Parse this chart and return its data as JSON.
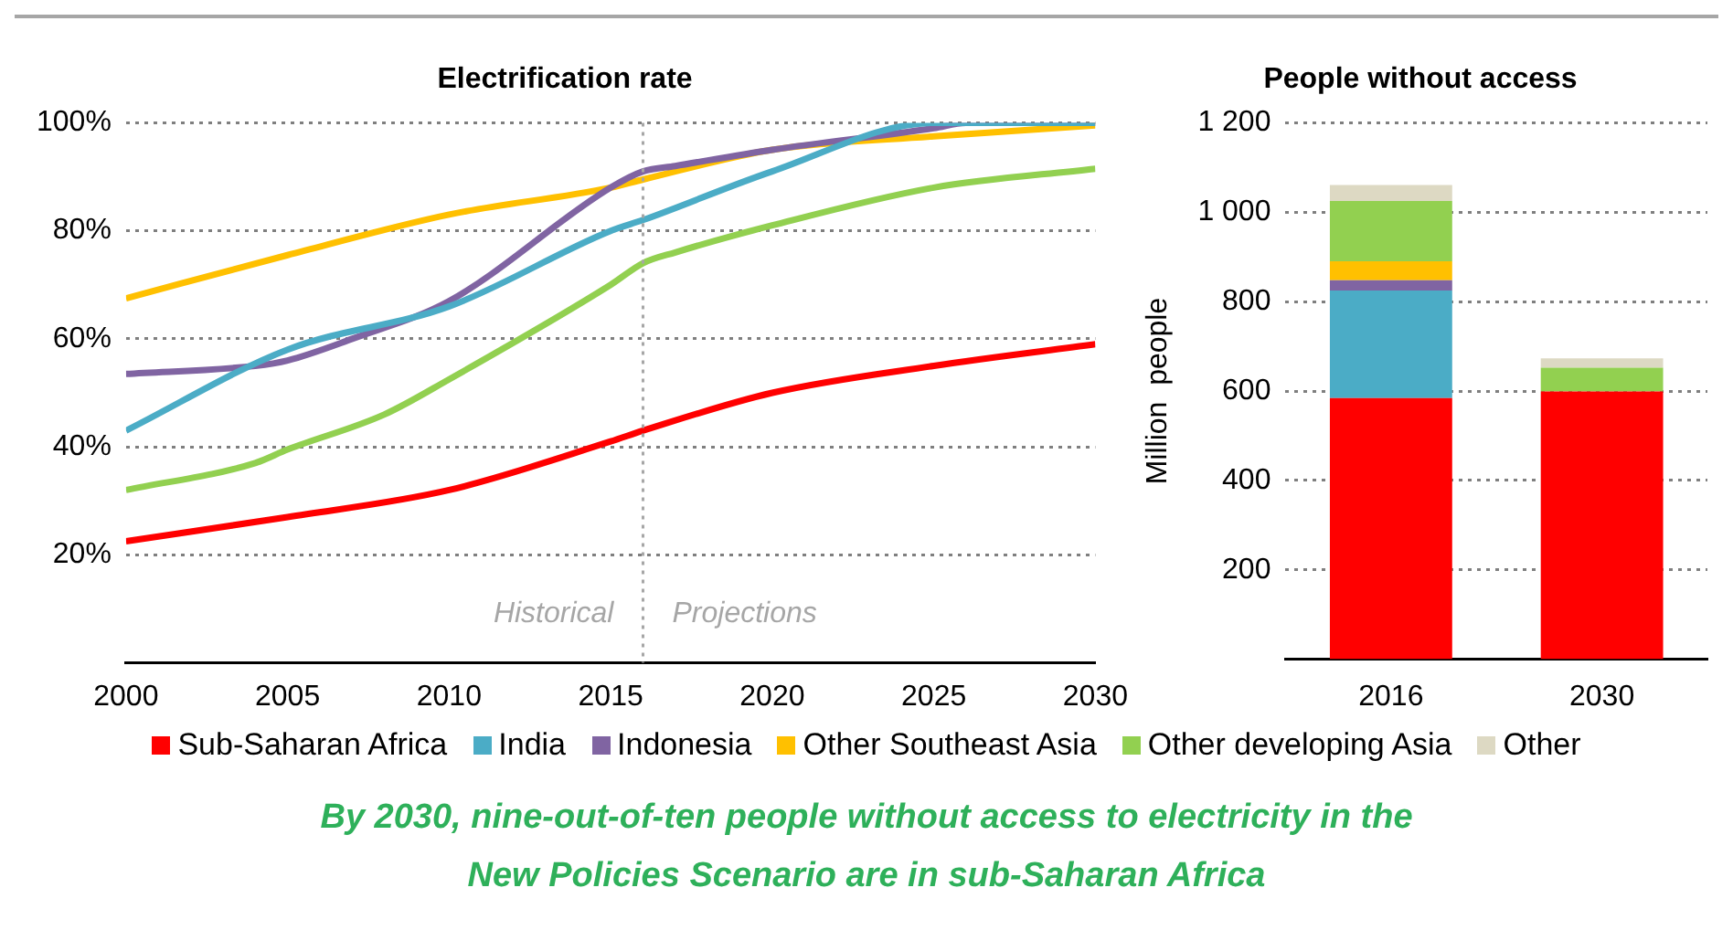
{
  "chart_data": [
    {
      "type": "line",
      "title": "Electrification rate",
      "x": [
        2000,
        2005,
        2010,
        2015,
        2016,
        2020,
        2025,
        2030
      ],
      "series": [
        {
          "name": "Sub-Saharan Africa",
          "color": "#ff0000",
          "values": [
            22.5,
            27,
            32,
            41,
            43,
            50,
            55,
            59
          ]
        },
        {
          "name": "India",
          "color": "#4bacc6",
          "values": [
            43,
            58,
            66,
            80,
            82,
            91,
            100,
            100
          ]
        },
        {
          "name": "Indonesia",
          "color": "#8064a2",
          "x": [
            2000,
            2004,
            2005,
            2007,
            2010,
            2015,
            2016,
            2017,
            2020,
            2025,
            2026,
            2030
          ],
          "values": [
            53.5,
            55,
            56,
            60,
            67,
            88,
            91,
            92,
            95,
            99,
            100,
            100
          ]
        },
        {
          "name": "Other Southeast Asia",
          "color": "#ffc000",
          "values": [
            67.5,
            75.5,
            83,
            88,
            89.5,
            95,
            97.5,
            99.5
          ]
        },
        {
          "name": "Other developing Asia",
          "color": "#92d050",
          "x": [
            2000,
            2004,
            2005,
            2008,
            2010,
            2015,
            2016,
            2017,
            2020,
            2025,
            2030
          ],
          "values": [
            32,
            37,
            39.5,
            46,
            52.5,
            70,
            74,
            76,
            81,
            88,
            91.5
          ]
        }
      ],
      "xlim": [
        2000,
        2030
      ],
      "xticks": [
        2000,
        2005,
        2010,
        2015,
        2020,
        2025,
        2030
      ],
      "ylim": [
        0,
        100
      ],
      "yticks": [
        {
          "value": 20,
          "label": "20%"
        },
        {
          "value": 40,
          "label": "40%"
        },
        {
          "value": 60,
          "label": "60%"
        },
        {
          "value": 80,
          "label": "80%"
        },
        {
          "value": 100,
          "label": "100%"
        }
      ],
      "grid": "y",
      "legend": "bottom",
      "marker": "none",
      "line_style": "solid",
      "ref_lines": [
        {
          "axis": "x",
          "value": 2016,
          "color": "#a6a6a6",
          "line_style": "dotted"
        }
      ],
      "annotations": [
        "Historical",
        "Projections",
        "By 2030, nine-out-of-ten people without access to electricity in the New Policies Scenario are in sub-Saharan Africa"
      ]
    },
    {
      "type": "bar",
      "title": "People without access",
      "ylabel": "Million  people",
      "categories": [
        "2016",
        "2030"
      ],
      "stacked": true,
      "series": [
        {
          "name": "Sub-Saharan Africa",
          "color": "#ff0000",
          "values": [
            584,
            599
          ]
        },
        {
          "name": "India",
          "color": "#4bacc6",
          "values": [
            241,
            0
          ]
        },
        {
          "name": "Indonesia",
          "color": "#8064a2",
          "values": [
            23,
            0
          ]
        },
        {
          "name": "Other Southeast Asia",
          "color": "#ffc000",
          "values": [
            42,
            0
          ]
        },
        {
          "name": "Other developing Asia",
          "color": "#92d050",
          "values": [
            135,
            53
          ]
        },
        {
          "name": "Other",
          "color": "#ddd9c3",
          "values": [
            36,
            21
          ]
        }
      ],
      "ylim": [
        0,
        1200
      ],
      "yticks": [
        200,
        400,
        600,
        800,
        {
          "value": 1000,
          "label": "1 000"
        },
        {
          "value": 1200,
          "label": "1 200"
        }
      ],
      "grid": "y",
      "legend": "bottom"
    }
  ]
}
